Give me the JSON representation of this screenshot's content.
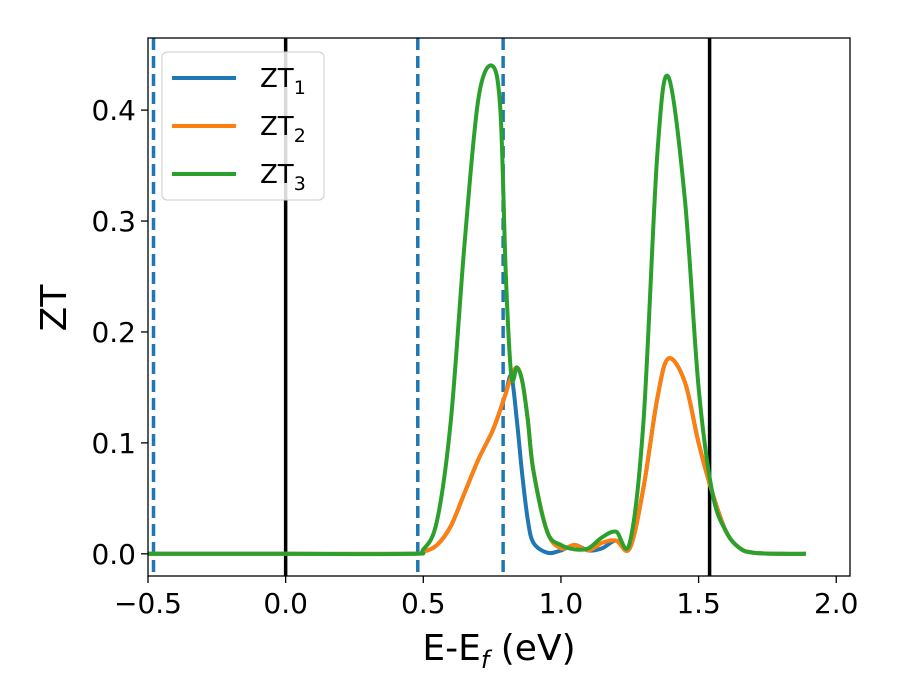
{
  "chart_data": {
    "type": "line",
    "xlabel": "E-E",
    "xlabel_sub": "f",
    "xlabel_unit": " (eV)",
    "ylabel": "ZT",
    "xlim": [
      -0.5,
      2.05
    ],
    "ylim": [
      -0.02,
      0.465
    ],
    "xticks": [
      -0.5,
      0.0,
      0.5,
      1.0,
      1.5,
      2.0
    ],
    "xtick_labels": [
      "−0.5",
      "0.0",
      "0.5",
      "1.0",
      "1.5",
      "2.0"
    ],
    "yticks": [
      0.0,
      0.1,
      0.2,
      0.3,
      0.4
    ],
    "ytick_labels": [
      "0.0",
      "0.1",
      "0.2",
      "0.3",
      "0.4"
    ],
    "grid": false,
    "legend_position": "upper-left",
    "vlines": [
      {
        "x": -0.48,
        "style": "dashed",
        "color": "#1f77b4"
      },
      {
        "x": 0.0,
        "style": "solid",
        "color": "#000000"
      },
      {
        "x": 0.48,
        "style": "dashed",
        "color": "#1f77b4"
      },
      {
        "x": 0.79,
        "style": "dashed",
        "color": "#1f77b4"
      },
      {
        "x": 1.54,
        "style": "solid",
        "color": "#000000"
      }
    ],
    "x": [
      -0.5,
      0.0,
      0.45,
      0.5,
      0.55,
      0.6,
      0.65,
      0.7,
      0.75,
      0.78,
      0.8,
      0.82,
      0.84,
      0.86,
      0.88,
      0.9,
      0.95,
      1.0,
      1.05,
      1.1,
      1.15,
      1.2,
      1.25,
      1.3,
      1.35,
      1.39,
      1.45,
      1.5,
      1.55,
      1.6,
      1.65,
      1.7,
      1.8,
      1.89
    ],
    "series": [
      {
        "name": "ZT",
        "name_sub": "1",
        "color": "#1f77b4",
        "values": [
          0,
          0,
          0,
          0.002,
          0.008,
          0.025,
          0.055,
          0.085,
          0.11,
          0.13,
          0.145,
          0.16,
          0.12,
          0.07,
          0.03,
          0.01,
          0.001,
          0.003,
          0.008,
          0.003,
          0.005,
          0.012,
          0.005,
          0.06,
          0.14,
          0.176,
          0.155,
          0.1,
          0.055,
          0.02,
          0.005,
          0.001,
          0,
          0
        ]
      },
      {
        "name": "ZT",
        "name_sub": "2",
        "color": "#ff7f0e",
        "values": [
          0,
          0,
          0,
          0.002,
          0.008,
          0.025,
          0.055,
          0.085,
          0.11,
          0.13,
          0.145,
          0.16,
          0.168,
          0.155,
          0.12,
          0.075,
          0.02,
          0.005,
          0.008,
          0.003,
          0.01,
          0.012,
          0.005,
          0.06,
          0.14,
          0.176,
          0.155,
          0.1,
          0.055,
          0.02,
          0.005,
          0.001,
          0,
          0
        ]
      },
      {
        "name": "ZT",
        "name_sub": "3",
        "color": "#2ca02c",
        "values": [
          0,
          0,
          0,
          0.004,
          0.03,
          0.12,
          0.28,
          0.41,
          0.44,
          0.4,
          0.25,
          0.16,
          0.168,
          0.155,
          0.12,
          0.075,
          0.02,
          0.008,
          0.004,
          0.005,
          0.015,
          0.02,
          0.01,
          0.12,
          0.36,
          0.43,
          0.32,
          0.15,
          0.055,
          0.02,
          0.005,
          0.001,
          0,
          0
        ]
      }
    ]
  }
}
